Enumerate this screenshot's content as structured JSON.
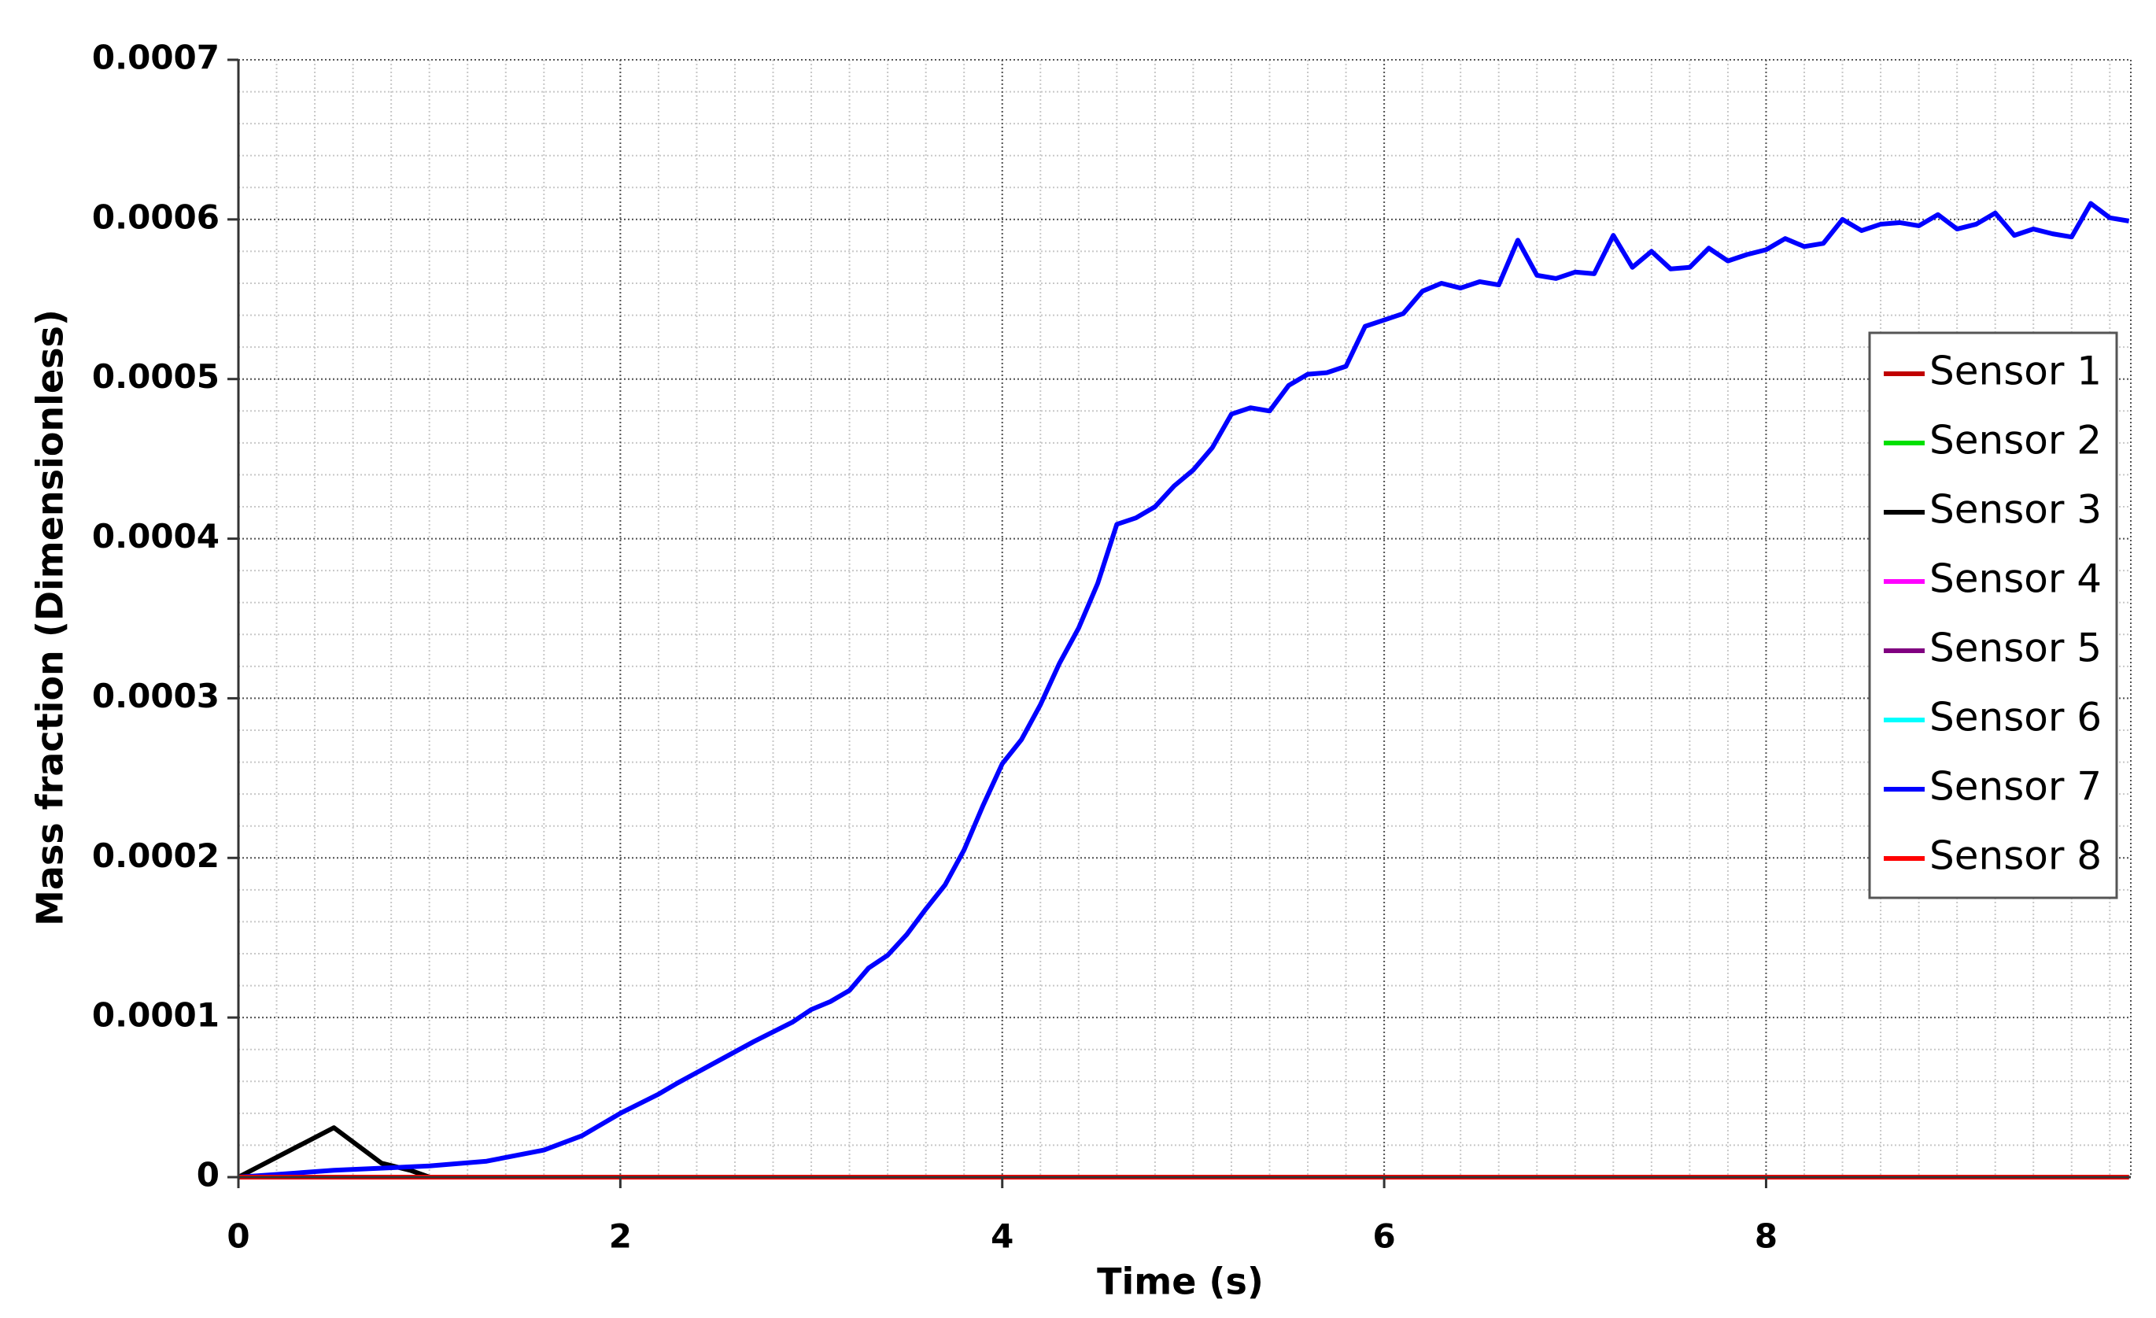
{
  "chart_data": {
    "type": "line",
    "xlabel": "Time (s)",
    "ylabel": "Mass fraction (Dimensionless)",
    "xlim": [
      0,
      9.91
    ],
    "xticks": [
      0,
      2,
      4,
      6,
      8
    ],
    "ylim": [
      0,
      0.0007
    ],
    "yticks": [
      0,
      0.0001,
      0.0002,
      0.0003,
      0.0004,
      0.0005,
      0.0006,
      0.0007
    ],
    "grid": true,
    "legend": "right",
    "series": [
      {
        "name": "Sensor 1",
        "color": "#c00000",
        "x": [
          0,
          9.9
        ],
        "values": [
          0,
          0
        ]
      },
      {
        "name": "Sensor 2",
        "color": "#00e000",
        "x": [
          0,
          9.9
        ],
        "values": [
          0,
          0
        ]
      },
      {
        "name": "Sensor 3",
        "color": "#000000",
        "x": [
          0,
          0.5,
          0.75,
          0.9,
          1.0,
          9.9
        ],
        "values": [
          0,
          3.1e-05,
          8.7e-06,
          4.3e-06,
          0,
          0
        ]
      },
      {
        "name": "Sensor 4",
        "color": "#ff00ff",
        "x": [
          0,
          9.9
        ],
        "values": [
          0,
          0
        ]
      },
      {
        "name": "Sensor 5",
        "color": "#800080",
        "x": [
          0,
          9.9
        ],
        "values": [
          0,
          0
        ]
      },
      {
        "name": "Sensor 6",
        "color": "#00ffff",
        "x": [
          0,
          9.9
        ],
        "values": [
          0,
          0
        ]
      },
      {
        "name": "Sensor 7",
        "color": "#0000ff",
        "x": [
          0,
          0.5,
          1.0,
          1.3,
          1.6,
          1.8,
          2.0,
          2.2,
          2.3,
          2.5,
          2.7,
          2.9,
          3.0,
          3.1,
          3.2,
          3.3,
          3.4,
          3.5,
          3.6,
          3.7,
          3.8,
          3.9,
          4.0,
          4.1,
          4.2,
          4.3,
          4.4,
          4.5,
          4.6,
          4.7,
          4.8,
          4.9,
          5.0,
          5.1,
          5.2,
          5.3,
          5.4,
          5.5,
          5.6,
          5.7,
          5.8,
          5.9,
          6.0,
          6.1,
          6.2,
          6.3,
          6.4,
          6.5,
          6.6,
          6.7,
          6.8,
          6.9,
          7.0,
          7.1,
          7.2,
          7.3,
          7.4,
          7.5,
          7.6,
          7.7,
          7.8,
          7.9,
          8.0,
          8.1,
          8.2,
          8.3,
          8.4,
          8.5,
          8.6,
          8.7,
          8.8,
          8.9,
          9.0,
          9.1,
          9.2,
          9.3,
          9.4,
          9.5,
          9.6,
          9.7,
          9.8,
          9.9
        ],
        "values": [
          0,
          4.3e-06,
          7e-06,
          1e-05,
          1.7e-05,
          2.6e-05,
          4e-05,
          5.2e-05,
          5.9e-05,
          7.2e-05,
          8.5e-05,
          9.7e-05,
          0.000105,
          0.00011,
          0.000117,
          0.000131,
          0.000139,
          0.000152,
          0.000168,
          0.000183,
          0.000205,
          0.000233,
          0.000259,
          0.000274,
          0.000296,
          0.000322,
          0.000344,
          0.000372,
          0.000409,
          0.000413,
          0.00042,
          0.000433,
          0.000443,
          0.000457,
          0.000478,
          0.000482,
          0.00048,
          0.000496,
          0.000503,
          0.000504,
          0.000508,
          0.000533,
          0.000537,
          0.000541,
          0.000555,
          0.00056,
          0.000557,
          0.000561,
          0.000559,
          0.000587,
          0.000565,
          0.000563,
          0.000567,
          0.000566,
          0.00059,
          0.00057,
          0.00058,
          0.000569,
          0.00057,
          0.000582,
          0.000574,
          0.000578,
          0.000581,
          0.000588,
          0.000583,
          0.000585,
          0.0006,
          0.000593,
          0.000597,
          0.000598,
          0.000596,
          0.000603,
          0.000594,
          0.000597,
          0.000604,
          0.00059,
          0.000594,
          0.000591,
          0.000589,
          0.00061,
          0.000601,
          0.000599
        ]
      },
      {
        "name": "Sensor 8",
        "color": "#ff0000",
        "x": [
          0,
          9.9
        ],
        "values": [
          0,
          0
        ]
      }
    ]
  }
}
